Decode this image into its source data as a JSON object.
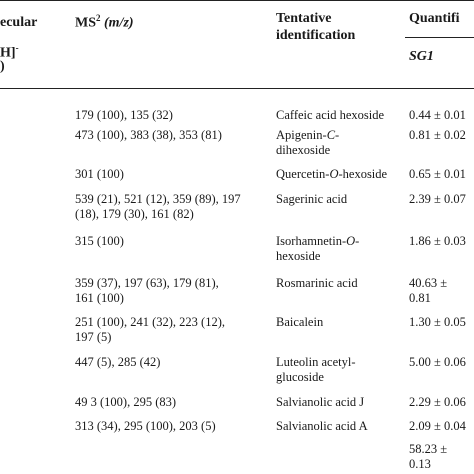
{
  "header": {
    "col1_line1": "ecular",
    "col1_line2": "H]",
    "col1_sup": "-",
    "col1_line3": ")",
    "ms_label": "MS",
    "ms_sup": "2",
    "ms_unit": "(m/z)",
    "id_line1": "Tentative",
    "id_line2": "identification",
    "quant_label": "Quantifi",
    "sub_col": "SG1"
  },
  "rows": [
    {
      "ms": [
        "179 (100), 135 (32)"
      ],
      "id": [
        "Caffeic acid hexoside"
      ],
      "q": [
        "0.44 ± 0.01"
      ]
    },
    {
      "ms": [
        "473 (100), 383 (38), 353 (81)"
      ],
      "id": [
        "Apigenin-C-",
        "dihexoside"
      ],
      "q": [
        "0.81 ± 0.02"
      ]
    },
    {
      "ms": [
        "301 (100)"
      ],
      "id": [
        "Quercetin-O-hexoside"
      ],
      "q": [
        "0.65 ± 0.01"
      ]
    },
    {
      "ms": [
        "539 (21), 521 (12), 359 (89), 197",
        "(18), 179 (30), 161 (82)"
      ],
      "id": [
        "Sagerinic acid"
      ],
      "q": [
        "2.39 ± 0.07"
      ]
    },
    {
      "ms": [
        "315 (100)"
      ],
      "id": [
        "Isorhamnetin-O-",
        "hexoside"
      ],
      "q": [
        "1.86 ± 0.03"
      ]
    },
    {
      "ms": [
        "359 (37), 197 (63), 179 (81),",
        "161 (100)"
      ],
      "id": [
        "Rosmarinic acid"
      ],
      "q": [
        "40.63 ±",
        "0.81"
      ]
    },
    {
      "ms": [
        "251 (100), 241 (32), 223 (12),",
        "197 (5)"
      ],
      "id": [
        "Baicalein"
      ],
      "q": [
        "1.30 ± 0.05"
      ]
    },
    {
      "ms": [
        "447 (5), 285 (42)"
      ],
      "id": [
        "Luteolin acetyl-",
        "glucoside"
      ],
      "q": [
        "5.00 ± 0.06"
      ]
    },
    {
      "ms": [
        "49 3 (100), 295 (83)"
      ],
      "id": [
        "Salvianolic acid J"
      ],
      "q": [
        "2.29 ± 0.06"
      ]
    },
    {
      "ms": [
        "313 (34), 295 (100), 203 (5)"
      ],
      "id": [
        "Salvianolic acid A"
      ],
      "q": [
        "2.09 ± 0.04"
      ]
    },
    {
      "ms": [],
      "id": [],
      "q": [
        "58.23 ±",
        "0.13"
      ]
    }
  ]
}
